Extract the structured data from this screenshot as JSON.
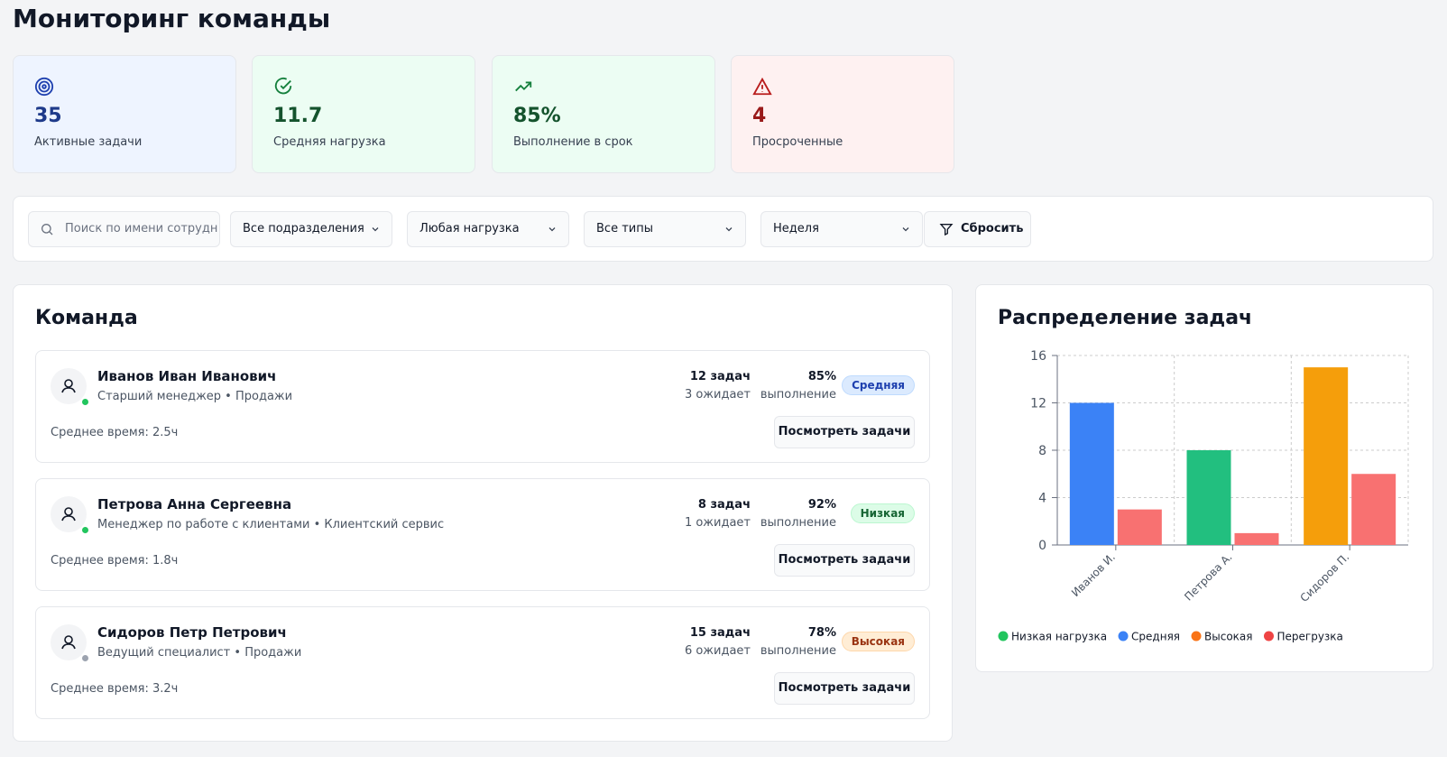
{
  "header": {
    "title": "Мониторинг команды"
  },
  "stats": [
    {
      "value": "35",
      "label": "Активные задачи",
      "style": "blue"
    },
    {
      "value": "11.7",
      "label": "Средняя нагрузка",
      "style": "green"
    },
    {
      "value": "85%",
      "label": "Выполнение в срок",
      "style": "green"
    },
    {
      "value": "4",
      "label": "Просроченные",
      "style": "red"
    }
  ],
  "filters": {
    "search_placeholder": "Поиск по имени сотрудн",
    "selects": [
      "Все подразделения",
      "Любая нагрузка",
      "Все типы",
      "Неделя"
    ],
    "reset": "Сбросить"
  },
  "team": {
    "title": "Команда",
    "members": [
      {
        "name": "Иванов Иван Иванович",
        "role": "Старший менеджер • Продажи",
        "tasks": "12 задач",
        "pending": "3 ожидает",
        "completion": "85%",
        "completion_label": "выполнение",
        "load": "Средняя",
        "load_style": "blue",
        "status_color": "#22c55e",
        "avg_time": "Среднее время: 2.5ч",
        "button": "Посмотреть задачи"
      },
      {
        "name": "Петрова Анна Сергеевна",
        "role": "Менеджер по работе с клиентами • Клиентский сервис",
        "tasks": "8 задач",
        "pending": "1 ожидает",
        "completion": "92%",
        "completion_label": "выполнение",
        "load": "Низкая",
        "load_style": "green",
        "status_color": "#22c55e",
        "avg_time": "Среднее время: 1.8ч",
        "button": "Посмотреть задачи"
      },
      {
        "name": "Сидоров Петр Петрович",
        "role": "Ведущий специалист • Продажи",
        "tasks": "15 задач",
        "pending": "6 ожидает",
        "completion": "78%",
        "completion_label": "выполнение",
        "load": "Высокая",
        "load_style": "orange",
        "status_color": "#9ca3af",
        "avg_time": "Среднее время: 3.2ч",
        "button": "Посмотреть задачи"
      }
    ]
  },
  "chart_data": {
    "type": "bar",
    "title": "Распределение задач",
    "categories": [
      "Иванов И.",
      "Петрова А.",
      "Сидоров П."
    ],
    "series": [
      {
        "name": "Низкая нагрузка",
        "color": "#22c55e",
        "bar_color": "#22bf7f",
        "values": [
          null,
          8,
          null
        ]
      },
      {
        "name": "Средняя",
        "color": "#3b82f6",
        "bar_color": "#3b82f6",
        "values": [
          12,
          null,
          null
        ]
      },
      {
        "name": "Высокая",
        "color": "#f97316",
        "bar_color": "#f59e0b",
        "values": [
          null,
          null,
          15
        ]
      },
      {
        "name": "Перегрузка",
        "color": "#ef4444",
        "bar_color": "#f87171",
        "values": [
          3,
          1,
          6
        ]
      }
    ],
    "ylim": [
      0,
      16
    ],
    "yticks": [
      0,
      4,
      8,
      12,
      16
    ],
    "grid": true
  }
}
